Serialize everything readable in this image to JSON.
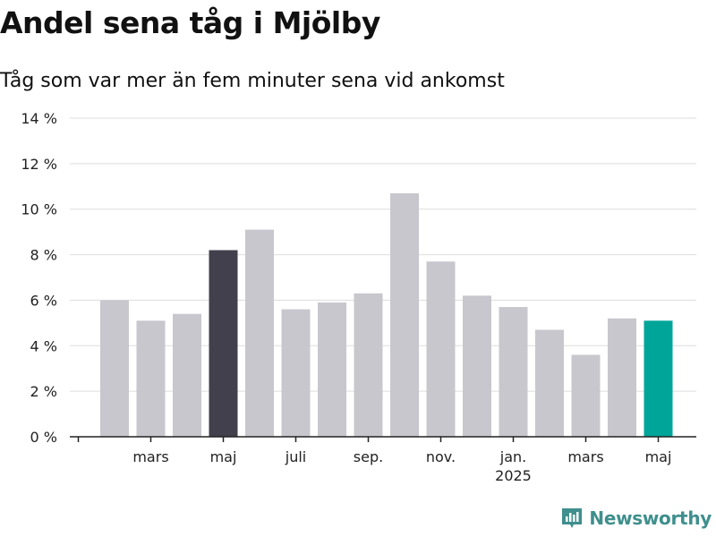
{
  "title": "Andel sena tåg i Mjölby",
  "subtitle": "Tåg som var mer än fem minuter sena vid ankomst",
  "brand": {
    "name": "Newsworthy"
  },
  "colors": {
    "bar_default": "#c8c7cd",
    "bar_highlight_dark": "#42404d",
    "bar_highlight_teal": "#00a59a",
    "grid": "#dddddd",
    "axis": "#222222",
    "brand": "#3f8f8d"
  },
  "chart_data": {
    "type": "bar",
    "ylim": [
      0,
      14
    ],
    "y_ticks": [
      {
        "value": 0,
        "label": "0 %"
      },
      {
        "value": 2,
        "label": "2 %"
      },
      {
        "value": 4,
        "label": "4 %"
      },
      {
        "value": 6,
        "label": "6 %"
      },
      {
        "value": 8,
        "label": "8 %"
      },
      {
        "value": 10,
        "label": "10 %"
      },
      {
        "value": 12,
        "label": "12 %"
      },
      {
        "value": 14,
        "label": "14 %"
      }
    ],
    "categories": [
      "2024-02",
      "2024-03",
      "2024-04",
      "2024-05",
      "2024-06",
      "2024-07",
      "2024-08",
      "2024-09",
      "2024-10",
      "2024-11",
      "2024-12",
      "2025-01",
      "2025-02",
      "2025-03",
      "2025-04",
      "2025-05"
    ],
    "values": [
      6.0,
      5.1,
      5.4,
      8.2,
      9.1,
      5.6,
      5.9,
      6.3,
      10.7,
      7.7,
      6.2,
      5.7,
      4.7,
      3.6,
      5.2,
      5.1
    ],
    "highlights": [
      {
        "index": 3,
        "color": "#42404d"
      },
      {
        "index": 15,
        "color": "#00a59a"
      }
    ],
    "x_tick_labels": [
      {
        "index": 1,
        "label": "mars",
        "sublabel": ""
      },
      {
        "index": 3,
        "label": "maj",
        "sublabel": ""
      },
      {
        "index": 5,
        "label": "juli",
        "sublabel": ""
      },
      {
        "index": 7,
        "label": "sep.",
        "sublabel": ""
      },
      {
        "index": 9,
        "label": "nov.",
        "sublabel": ""
      },
      {
        "index": 11,
        "label": "jan.",
        "sublabel": "2025"
      },
      {
        "index": 13,
        "label": "mars",
        "sublabel": ""
      },
      {
        "index": 15,
        "label": "maj",
        "sublabel": ""
      }
    ],
    "grid": true,
    "legend": "none"
  }
}
